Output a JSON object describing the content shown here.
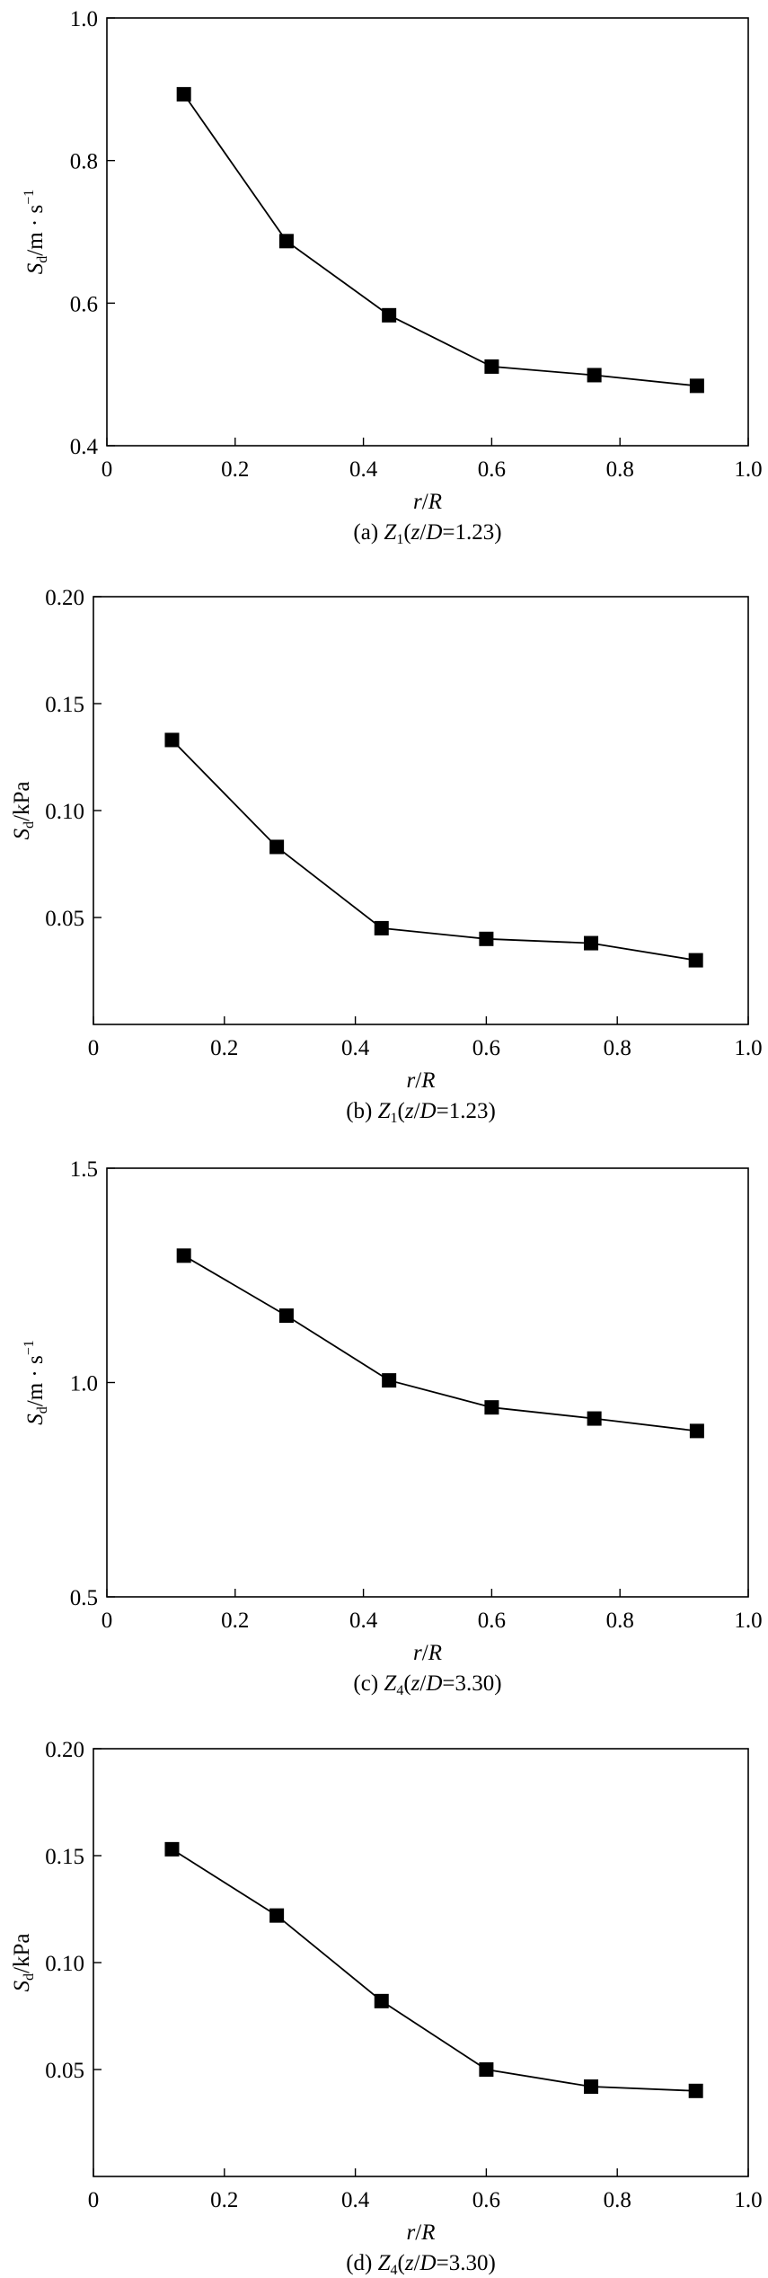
{
  "chart_data": [
    {
      "type": "line",
      "x": [
        0.12,
        0.28,
        0.44,
        0.6,
        0.76,
        0.92
      ],
      "series": [
        {
          "values": [
            0.893,
            0.687,
            0.583,
            0.511,
            0.499,
            0.484
          ],
          "marker": "square"
        }
      ],
      "xlim": [
        0,
        1.0
      ],
      "ylim": [
        0.4,
        1.0
      ],
      "xticks": [
        "0",
        "0.2",
        "0.4",
        "0.6",
        "0.8",
        "1.0"
      ],
      "yticks": [
        "0.4",
        "0.6",
        "0.8",
        "1.0"
      ],
      "xlabel": {
        "italic": "r",
        "plain": "/",
        "italic2": "R"
      },
      "ylabel": {
        "main": "S",
        "sub": "d",
        "unit": "/m · s",
        "sup": "−1"
      },
      "caption": {
        "pre": "(a) ",
        "italic": "Z",
        "sub": "1",
        "paren": "(",
        "italic2": "z",
        "slash": "/",
        "italic3": "D",
        "post": "=1.23)"
      },
      "grid": false
    },
    {
      "type": "line",
      "x": [
        0.12,
        0.28,
        0.44,
        0.6,
        0.76,
        0.92
      ],
      "series": [
        {
          "values": [
            0.133,
            0.083,
            0.045,
            0.04,
            0.038,
            0.03
          ],
          "marker": "square"
        }
      ],
      "xlim": [
        0,
        1.0
      ],
      "ylim": [
        0,
        0.2
      ],
      "xticks": [
        "0",
        "0.2",
        "0.4",
        "0.6",
        "0.8",
        "1.0"
      ],
      "yticks": [
        "0.05",
        "0.10",
        "0.15",
        "0.20"
      ],
      "xlabel": {
        "italic": "r",
        "plain": "/",
        "italic2": "R"
      },
      "ylabel": {
        "main": "S",
        "sub": "d",
        "unit": "/kPa",
        "sup": ""
      },
      "caption": {
        "pre": "(b) ",
        "italic": "Z",
        "sub": "1",
        "paren": "(",
        "italic2": "z",
        "slash": "/",
        "italic3": "D",
        "post": "=1.23)"
      },
      "grid": false
    },
    {
      "type": "line",
      "x": [
        0.12,
        0.28,
        0.44,
        0.6,
        0.76,
        0.92
      ],
      "series": [
        {
          "values": [
            1.296,
            1.156,
            1.005,
            0.942,
            0.916,
            0.887
          ],
          "marker": "square"
        }
      ],
      "xlim": [
        0,
        1.0
      ],
      "ylim": [
        0.5,
        1.5
      ],
      "xticks": [
        "0",
        "0.2",
        "0.4",
        "0.6",
        "0.8",
        "1.0"
      ],
      "yticks": [
        "0.5",
        "1.0",
        "1.5"
      ],
      "xlabel": {
        "italic": "r",
        "plain": "/",
        "italic2": "R"
      },
      "ylabel": {
        "main": "S",
        "sub": "d",
        "unit": "/m · s",
        "sup": "−1"
      },
      "caption": {
        "pre": "(c) ",
        "italic": "Z",
        "sub": "4",
        "paren": "(",
        "italic2": "z",
        "slash": "/",
        "italic3": "D",
        "post": "=3.30)"
      },
      "grid": false
    },
    {
      "type": "line",
      "x": [
        0.12,
        0.28,
        0.44,
        0.6,
        0.76,
        0.92
      ],
      "series": [
        {
          "values": [
            0.153,
            0.122,
            0.082,
            0.05,
            0.042,
            0.04
          ],
          "marker": "square"
        }
      ],
      "xlim": [
        0,
        1.0
      ],
      "ylim": [
        0,
        0.2
      ],
      "xticks": [
        "0",
        "0.2",
        "0.4",
        "0.6",
        "0.8",
        "1.0"
      ],
      "yticks": [
        "0.05",
        "0.10",
        "0.15",
        "0.20"
      ],
      "xlabel": {
        "italic": "r",
        "plain": "/",
        "italic2": "R"
      },
      "ylabel": {
        "main": "S",
        "sub": "d",
        "unit": "/kPa",
        "sup": ""
      },
      "caption": {
        "pre": "(d) ",
        "italic": "Z",
        "sub": "4",
        "paren": "(",
        "italic2": "z",
        "slash": "/",
        "italic3": "D",
        "post": "=3.30)"
      },
      "grid": false
    }
  ]
}
